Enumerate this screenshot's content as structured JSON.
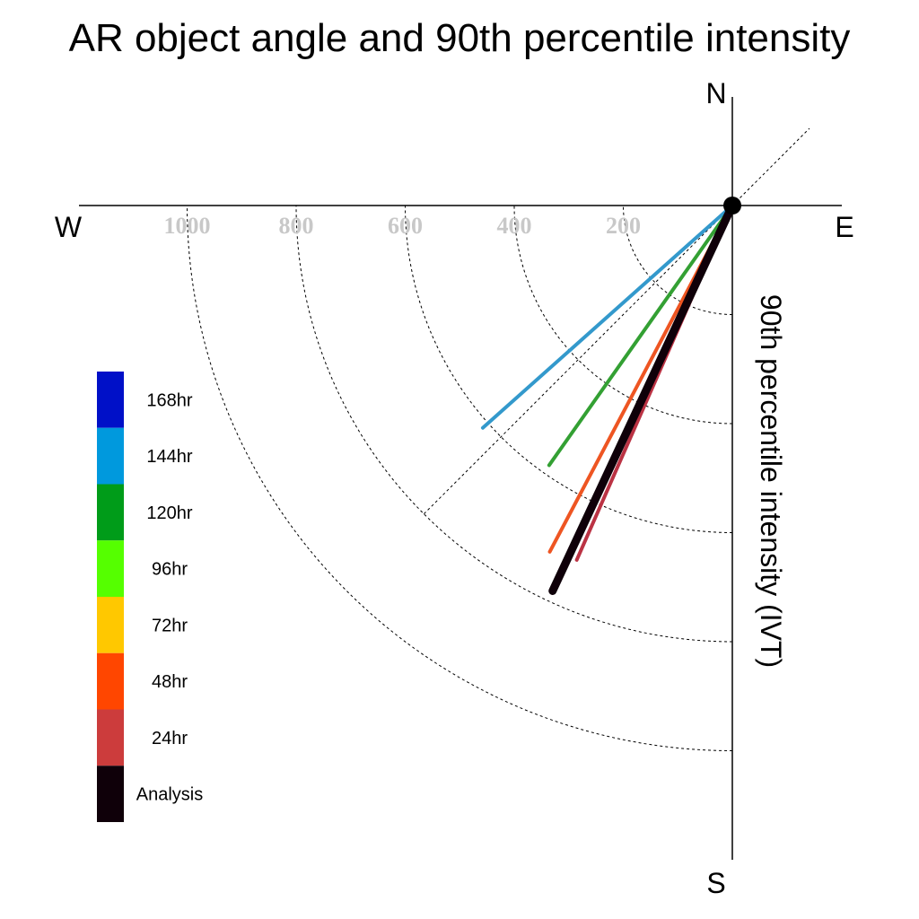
{
  "chart_data": {
    "type": "line",
    "title": "AR object angle and 90th percentile intensity",
    "ylabel": "90th percentile intensity (IVT)",
    "compass": {
      "north": "N",
      "south": "S",
      "east": "E",
      "west": "W"
    },
    "radial_ticks": [
      "200",
      "400",
      "600",
      "800",
      "1000"
    ],
    "radial_tick_values": [
      200,
      400,
      600,
      800,
      1000
    ],
    "reference_angle_deg": 45,
    "legend_placement": "left",
    "legend": [
      {
        "label": "168hr",
        "color": "#0010c8"
      },
      {
        "label": "144hr",
        "color": "#0099dd"
      },
      {
        "label": "120hr",
        "color": "#009c19"
      },
      {
        "label": "96hr",
        "color": "#55ff00"
      },
      {
        "label": "72hr",
        "color": "#ffc800"
      },
      {
        "label": "48hr",
        "color": "#ff4600"
      },
      {
        "label": "24hr",
        "color": "#cc3c3c"
      },
      {
        "label": "Analysis",
        "color": "#0f0009"
      }
    ],
    "series": [
      {
        "name": "144hr",
        "color": "#3399cc",
        "angle_deg": 48.3,
        "intensity": 613,
        "width": 4
      },
      {
        "name": "120hr",
        "color": "#33a033",
        "angle_deg": 35.2,
        "intensity": 583,
        "width": 4
      },
      {
        "name": "48hr",
        "color": "#ee5522",
        "angle_deg": 27.8,
        "intensity": 718,
        "width": 4
      },
      {
        "name": "24hr",
        "color": "#bb3344",
        "angle_deg": 23.7,
        "intensity": 710,
        "width": 4
      },
      {
        "name": "Analysis",
        "color": "#0f0009",
        "angle_deg": 25.0,
        "intensity": 780,
        "width": 9
      }
    ]
  }
}
